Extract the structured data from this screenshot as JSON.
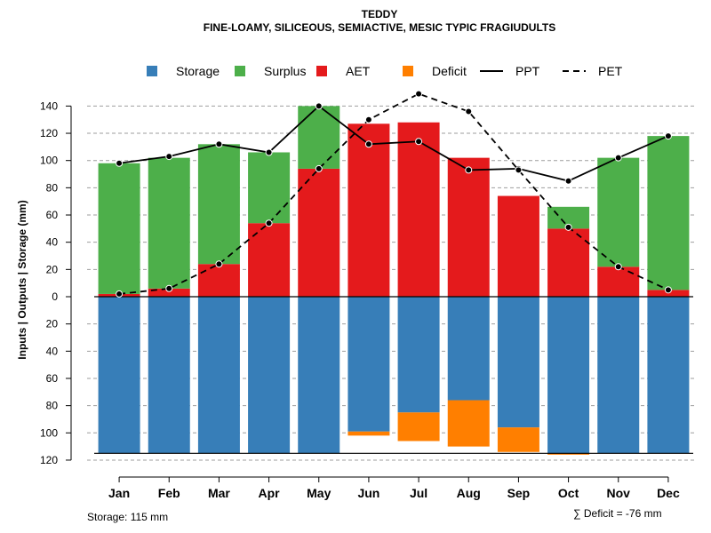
{
  "chart_data": {
    "type": "bar",
    "title": "TEDDY",
    "subtitle": "FINE-LOAMY, SILICEOUS, SEMIACTIVE, MESIC TYPIC FRAGIUDULTS",
    "ylabel": "Inputs | Outputs | Storage    (mm)",
    "categories": [
      "Jan",
      "Feb",
      "Mar",
      "Apr",
      "May",
      "Jun",
      "Jul",
      "Aug",
      "Sep",
      "Oct",
      "Nov",
      "Dec"
    ],
    "ylim": [
      -120,
      150
    ],
    "yticks": [
      140,
      120,
      100,
      80,
      60,
      40,
      20,
      0,
      -20,
      -40,
      -60,
      -80,
      -100,
      -120
    ],
    "ytick_labels": [
      "140",
      "120",
      "100",
      "80",
      "60",
      "40",
      "20",
      "0",
      "20",
      "40",
      "60",
      "80",
      "100",
      "120"
    ],
    "bar_series": [
      {
        "name": "AET",
        "color": "#E41A1C",
        "values": [
          2,
          6,
          24,
          54,
          94,
          127,
          128,
          102,
          74,
          50,
          22,
          5
        ]
      },
      {
        "name": "Surplus",
        "color": "#4DAF4A",
        "values": [
          96,
          96,
          88,
          52,
          46,
          0,
          0,
          0,
          0,
          16,
          80,
          113
        ]
      },
      {
        "name": "Storage",
        "color": "#377EB8",
        "values": [
          115,
          115,
          115,
          115,
          115,
          99,
          85,
          76,
          96,
          115,
          115,
          115
        ]
      },
      {
        "name": "Deficit",
        "color": "#FF7F00",
        "values": [
          0,
          0,
          0,
          0,
          0,
          3,
          21,
          34,
          18,
          1,
          0,
          0
        ]
      }
    ],
    "line_series": [
      {
        "name": "PPT",
        "style": "solid",
        "values": [
          98,
          103,
          112,
          106,
          140,
          112,
          114,
          93,
          94,
          85,
          102,
          118
        ]
      },
      {
        "name": "PET",
        "style": "dashed",
        "values": [
          2,
          6,
          24,
          54,
          94,
          130,
          149,
          136,
          93,
          51,
          22,
          5
        ]
      }
    ],
    "legend": {
      "position": "top",
      "items": [
        {
          "name": "Storage",
          "kind": "box",
          "color": "#377EB8"
        },
        {
          "name": "Surplus",
          "kind": "box",
          "color": "#4DAF4A"
        },
        {
          "name": "AET",
          "kind": "box",
          "color": "#E41A1C"
        },
        {
          "name": "Deficit",
          "kind": "box",
          "color": "#FF7F00"
        },
        {
          "name": "PPT",
          "kind": "solid-line",
          "color": "#000000"
        },
        {
          "name": "PET",
          "kind": "dashed-line",
          "color": "#000000"
        }
      ]
    },
    "storage_note": "Storage: 115 mm",
    "deficit_note": "∑ Deficit = -76 mm",
    "grid": true
  }
}
